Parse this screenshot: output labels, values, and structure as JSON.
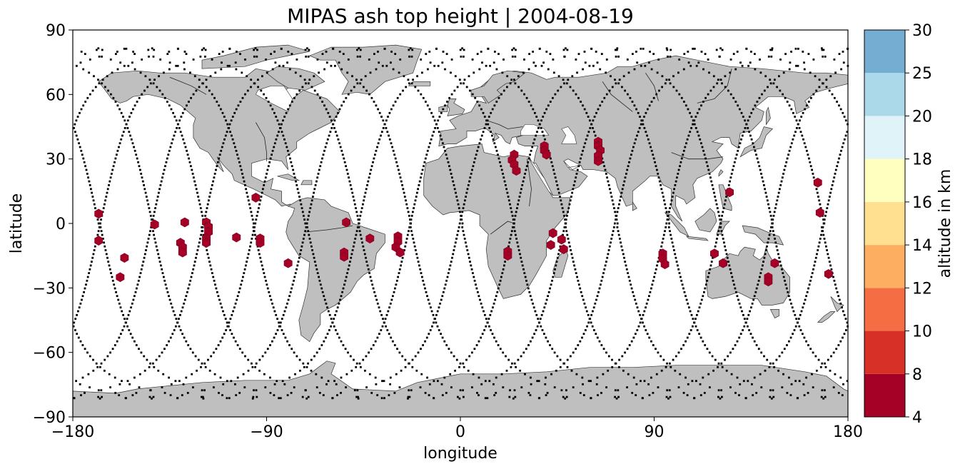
{
  "title": "MIPAS ash top height | 2004-08-19",
  "colors": {
    "land": "#bfbfbf",
    "ocean": "#ffffff",
    "track": "#000000",
    "detection": "#a50026"
  },
  "chart_data": {
    "type": "scatter",
    "map_projection": "PlateCarree",
    "xlabel": "longitude",
    "ylabel": "latitude",
    "xlim": [
      -180,
      180
    ],
    "ylim": [
      -90,
      90
    ],
    "xticks": [
      -180,
      -90,
      0,
      90,
      180
    ],
    "xtick_labels": [
      "−180",
      "−90",
      "0",
      "90",
      "180"
    ],
    "yticks": [
      90,
      60,
      30,
      0,
      -30,
      -60,
      -90
    ],
    "ytick_labels": [
      "90",
      "60",
      "30",
      "0",
      "−30",
      "−60",
      "−90"
    ],
    "grid": false,
    "colorbar": {
      "label": "altitude in km",
      "bounds": [
        4,
        8,
        10,
        12,
        14,
        16,
        18,
        20,
        25,
        30
      ],
      "tick_labels": [
        "4",
        "8",
        "10",
        "12",
        "14",
        "16",
        "18",
        "20",
        "25",
        "30"
      ],
      "colors": [
        "#a50026",
        "#d73027",
        "#f46d43",
        "#fdae61",
        "#fee090",
        "#ffffbf",
        "#e0f3f8",
        "#abd9e9",
        "#74add1",
        "#4575b4",
        "#313695"
      ]
    },
    "track_crossings_at_equator": [
      -168,
      -143,
      -119,
      -96,
      -72,
      -47,
      -23,
      1,
      25,
      49,
      73,
      97,
      121,
      145,
      169
    ],
    "ash_detections": [
      {
        "lon": -168,
        "lat": 4.5
      },
      {
        "lon": -168,
        "lat": -8
      },
      {
        "lon": -156,
        "lat": -16
      },
      {
        "lon": -158,
        "lat": -25
      },
      {
        "lon": -142,
        "lat": -0.5
      },
      {
        "lon": -128,
        "lat": 0.5
      },
      {
        "lon": -130,
        "lat": -9
      },
      {
        "lon": -129,
        "lat": -11
      },
      {
        "lon": -129,
        "lat": -13.5
      },
      {
        "lon": -118,
        "lat": 0.5
      },
      {
        "lon": -117,
        "lat": -1.5
      },
      {
        "lon": -117,
        "lat": -4
      },
      {
        "lon": -118,
        "lat": -7
      },
      {
        "lon": -118,
        "lat": -9
      },
      {
        "lon": -104,
        "lat": -6.5
      },
      {
        "lon": -95,
        "lat": 12
      },
      {
        "lon": -93,
        "lat": -7
      },
      {
        "lon": -93,
        "lat": -9
      },
      {
        "lon": -80,
        "lat": -18.5
      },
      {
        "lon": -53,
        "lat": 0.5
      },
      {
        "lon": -54,
        "lat": -13.5
      },
      {
        "lon": -54,
        "lat": -15.5
      },
      {
        "lon": -42,
        "lat": -7
      },
      {
        "lon": -29,
        "lat": -6
      },
      {
        "lon": -29,
        "lat": -8.5
      },
      {
        "lon": -30,
        "lat": -11
      },
      {
        "lon": -28,
        "lat": -13.5
      },
      {
        "lon": 25,
        "lat": 32
      },
      {
        "lon": 24,
        "lat": 29.5
      },
      {
        "lon": 25,
        "lat": 27.5
      },
      {
        "lon": 26,
        "lat": 24.5
      },
      {
        "lon": 22,
        "lat": -13
      },
      {
        "lon": 22,
        "lat": -15
      },
      {
        "lon": 39,
        "lat": 36
      },
      {
        "lon": 39,
        "lat": 34
      },
      {
        "lon": 40,
        "lat": 32
      },
      {
        "lon": 43,
        "lat": -4.5
      },
      {
        "lon": 42,
        "lat": -10
      },
      {
        "lon": 47,
        "lat": -7.5
      },
      {
        "lon": 48,
        "lat": -12
      },
      {
        "lon": 64,
        "lat": 38
      },
      {
        "lon": 64,
        "lat": 36
      },
      {
        "lon": 65,
        "lat": 34
      },
      {
        "lon": 64,
        "lat": 31.5
      },
      {
        "lon": 64,
        "lat": 29
      },
      {
        "lon": 94,
        "lat": -14
      },
      {
        "lon": 94,
        "lat": -16.5
      },
      {
        "lon": 95,
        "lat": -19
      },
      {
        "lon": 118,
        "lat": -14
      },
      {
        "lon": 122,
        "lat": -18.5
      },
      {
        "lon": 125,
        "lat": 14.5
      },
      {
        "lon": 146,
        "lat": -18.5
      },
      {
        "lon": 143,
        "lat": -25
      },
      {
        "lon": 143,
        "lat": -27
      },
      {
        "lon": 166,
        "lat": 19
      },
      {
        "lon": 167,
        "lat": 5
      },
      {
        "lon": 171,
        "lat": -23.5
      }
    ]
  }
}
